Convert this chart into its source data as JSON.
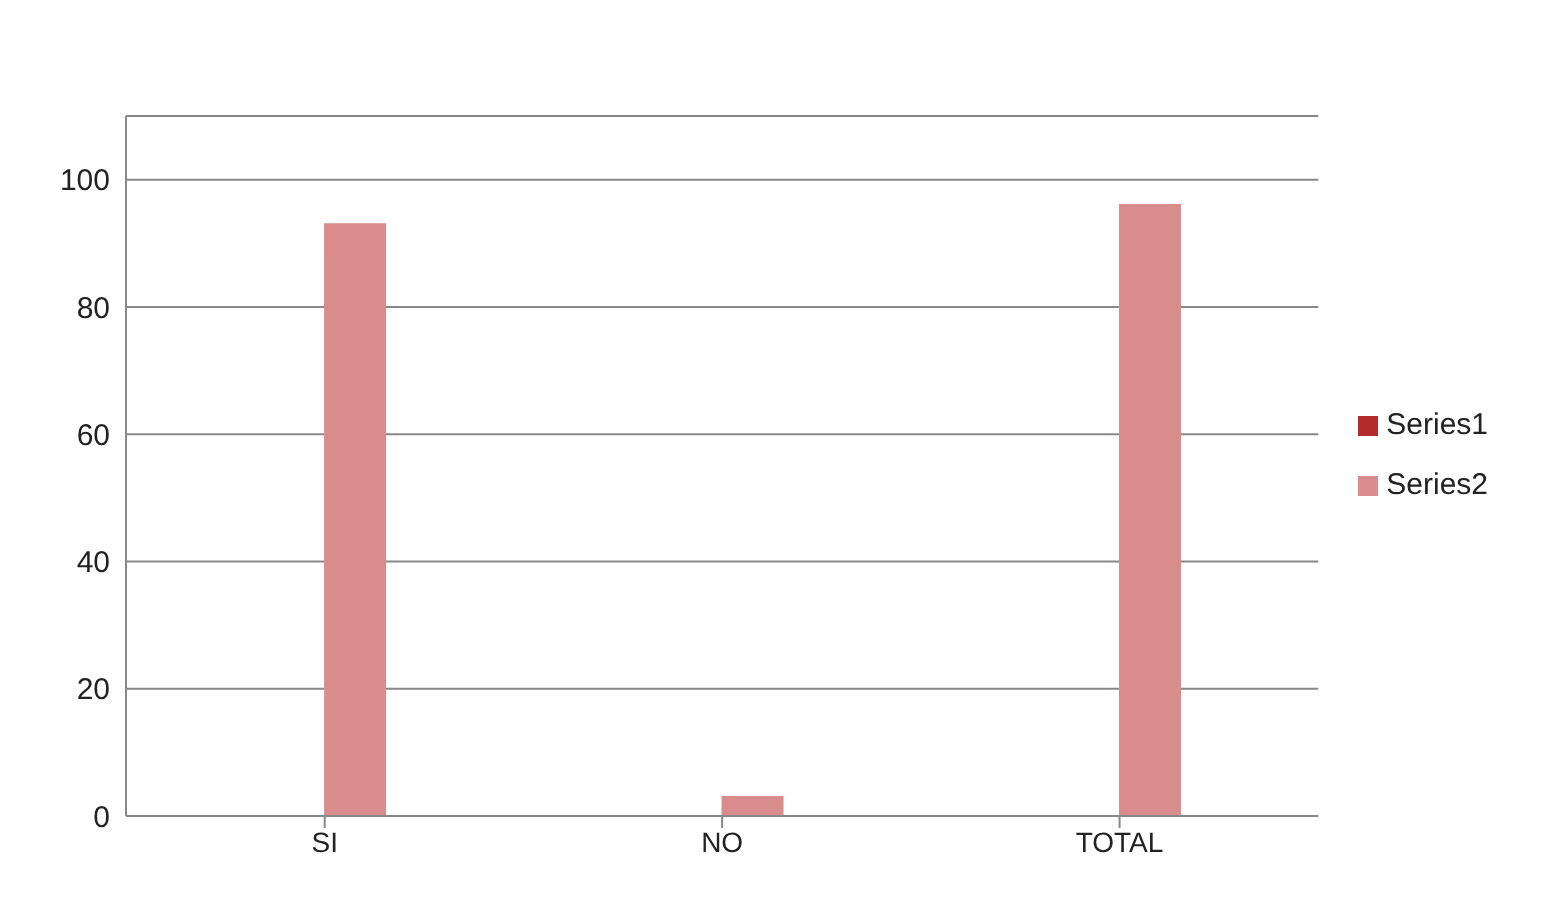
{
  "chart_data": {
    "type": "bar",
    "categories": [
      "SI",
      "NO",
      "TOTAL"
    ],
    "series": [
      {
        "name": "Series1",
        "color": "#b52a2a",
        "values": [
          0,
          0,
          0
        ]
      },
      {
        "name": "Series2",
        "color": "#d98c8c",
        "values": [
          93,
          3,
          96
        ]
      }
    ],
    "ylim": [
      0,
      110
    ],
    "yticks": [
      0,
      20,
      40,
      60,
      80,
      100
    ],
    "grid": "y",
    "legend": "right"
  }
}
